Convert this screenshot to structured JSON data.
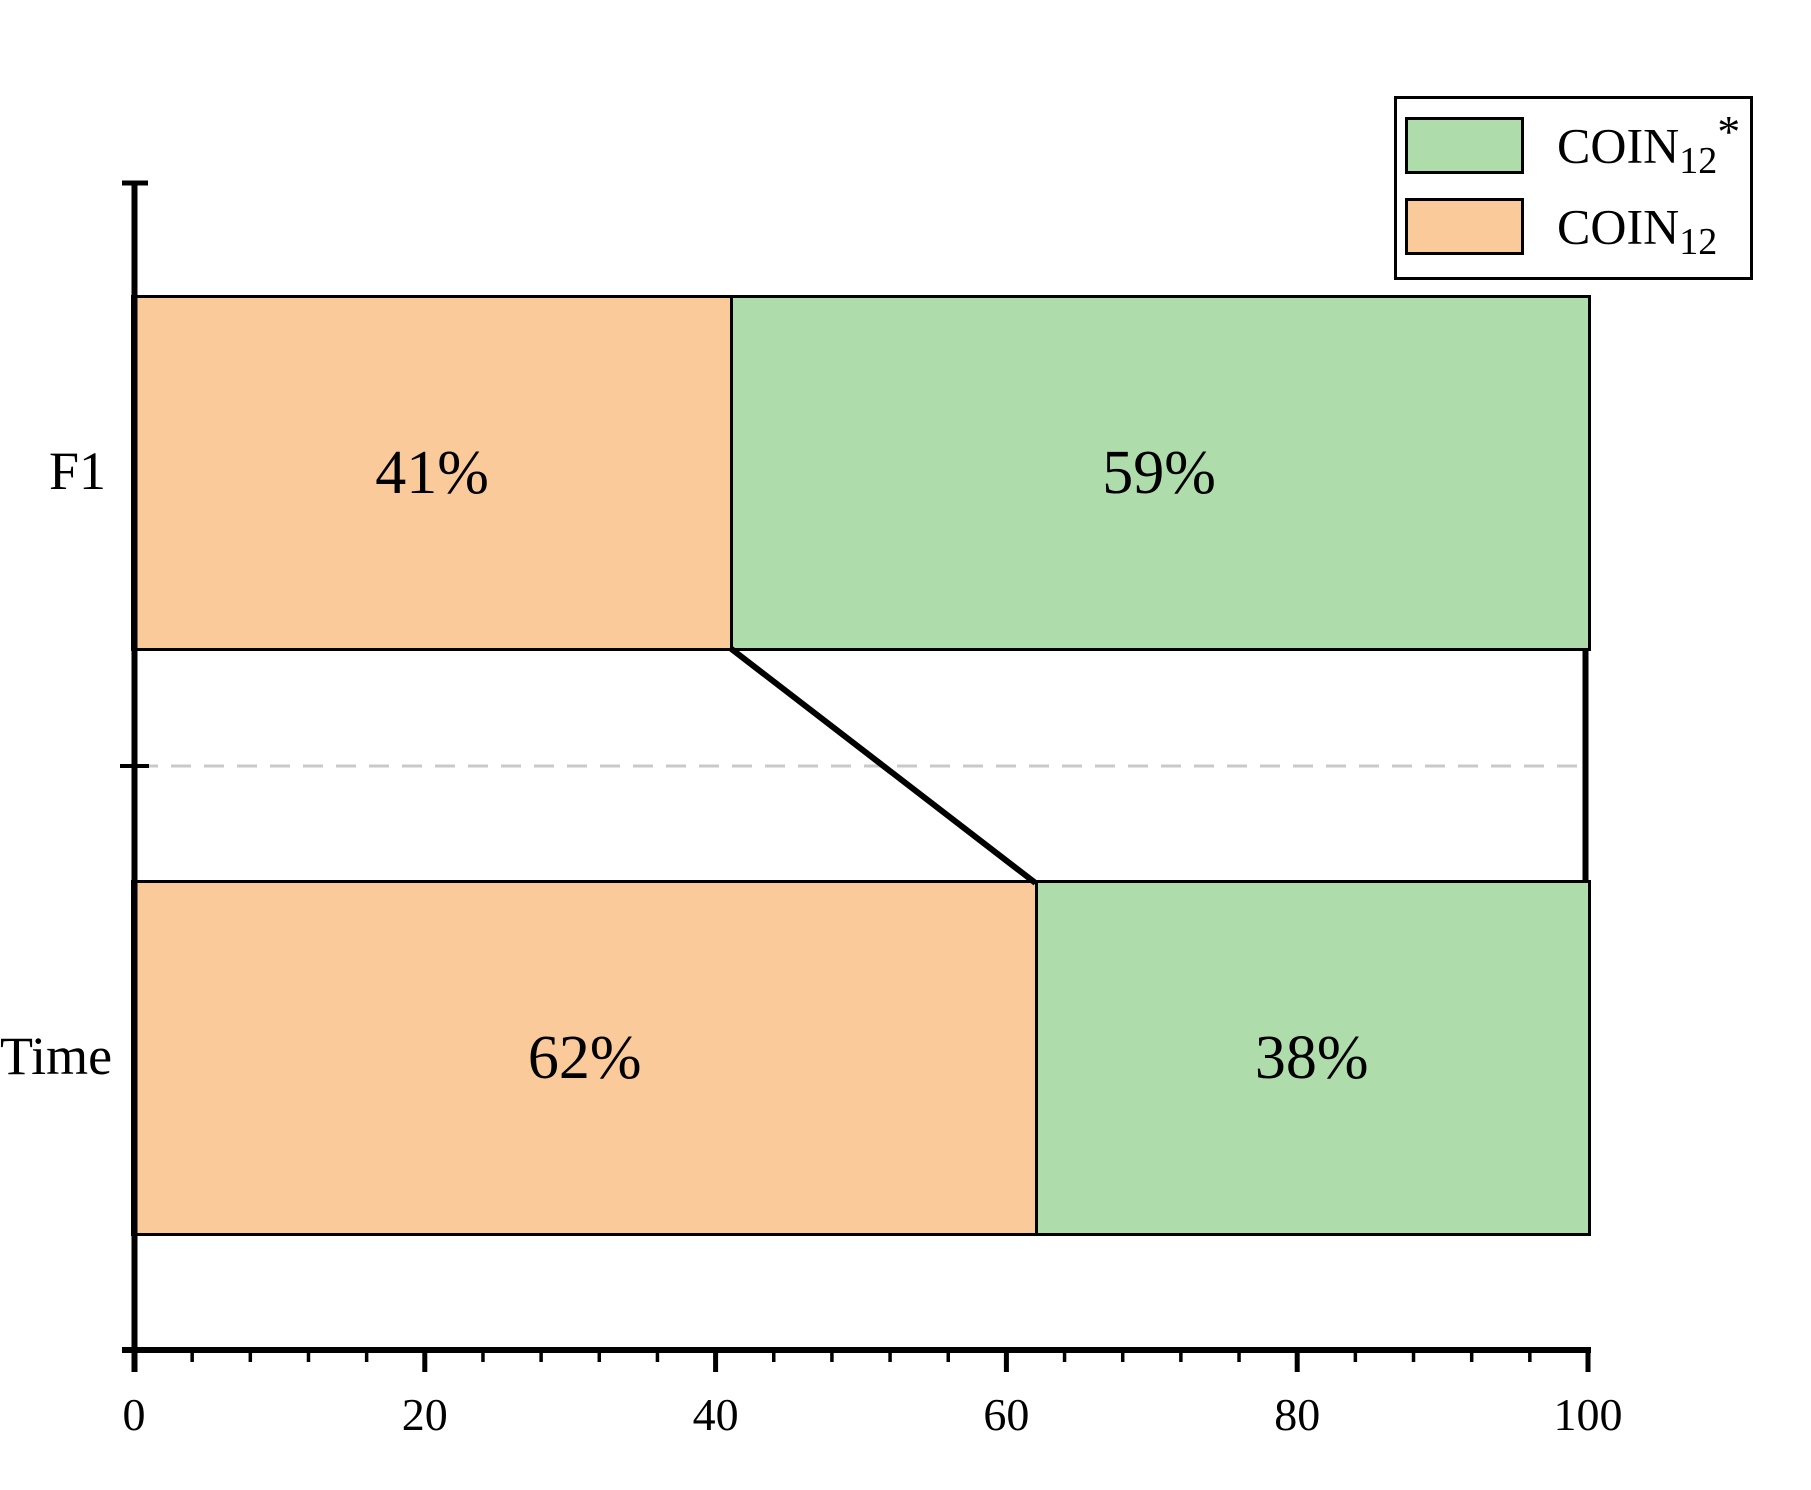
{
  "figure": {
    "background": "#ffffff",
    "colors": {
      "bar_edge": "#000000",
      "axis": "#000000",
      "connector": "#000000",
      "dashed_guide": "#c9c9c9",
      "label_text": "#000000"
    }
  },
  "chart_data": {
    "type": "bar",
    "orientation": "horizontal",
    "stacked": true,
    "units": "percent",
    "title": "",
    "xlabel": "",
    "ylabel": "",
    "categories": [
      "F1",
      "Time"
    ],
    "series": [
      {
        "name": "COIN12",
        "display": {
          "base": "COIN",
          "sub": "12",
          "sup": ""
        },
        "color": "#fbca9a",
        "values": [
          41,
          62
        ]
      },
      {
        "name": "COIN12*",
        "display": {
          "base": "COIN",
          "sub": "12",
          "sup": "*"
        },
        "color": "#aedcaa",
        "values": [
          59,
          38
        ]
      }
    ],
    "bar_labels": [
      [
        "41%",
        "62%"
      ],
      [
        "59%",
        "38%"
      ]
    ],
    "xlim": [
      0,
      100
    ],
    "x_major_ticks": [
      0,
      20,
      40,
      60,
      80,
      100
    ],
    "x_tick_labels": [
      "0",
      "20",
      "40",
      "60",
      "80",
      "100"
    ],
    "x_minor_tick_step": 4,
    "grid": false,
    "legend_position": "upper right",
    "annotations": {
      "dashed_guide_between_bars": true,
      "connector_left_boundary": [
        41,
        62
      ],
      "connector_right_boundary": [
        100,
        100
      ]
    }
  },
  "legend": {
    "items": [
      {
        "series": "COIN12*",
        "base": "COIN",
        "sub": "12",
        "sup": "*"
      },
      {
        "series": "COIN12",
        "base": "COIN",
        "sub": "12",
        "sup": ""
      }
    ]
  }
}
